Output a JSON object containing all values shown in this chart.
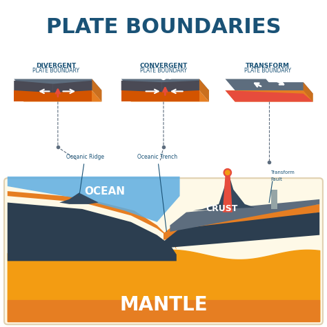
{
  "title": "PLATE BOUNDARIES",
  "title_color": "#1a5276",
  "title_fontsize": 22,
  "bg_color": "#ffffff",
  "labels": {
    "divergent_line1": "DIVERGENT",
    "divergent_line2": "PLATE BOUNDARY",
    "convergent_line1": "CONVERGENT",
    "convergent_line2": "PLATE BOUNDARY",
    "transform_line1": "TRANSFORM",
    "transform_line2": "PLATE BOUNDARY",
    "oceanic_ridge": "Oceanic Ridge",
    "oceanic_trench": "Oceanic Trench",
    "transform_fault_line1": "Transform",
    "transform_fault_line2": "Fault",
    "ocean": "OCEAN",
    "crust": "CRUST",
    "mantle": "MANTLE"
  },
  "label_color": "#1a5276",
  "ocean_color": "#5dade2",
  "mantle_color_top": "#f39c12",
  "mantle_color_bottom": "#e67e22",
  "crust_dark": "#2c3e50",
  "crust_orange": "#e67e22",
  "crust_light_orange": "#f39c12",
  "lava_color": "#e74c3c",
  "box_bg": "#f8f9fa"
}
